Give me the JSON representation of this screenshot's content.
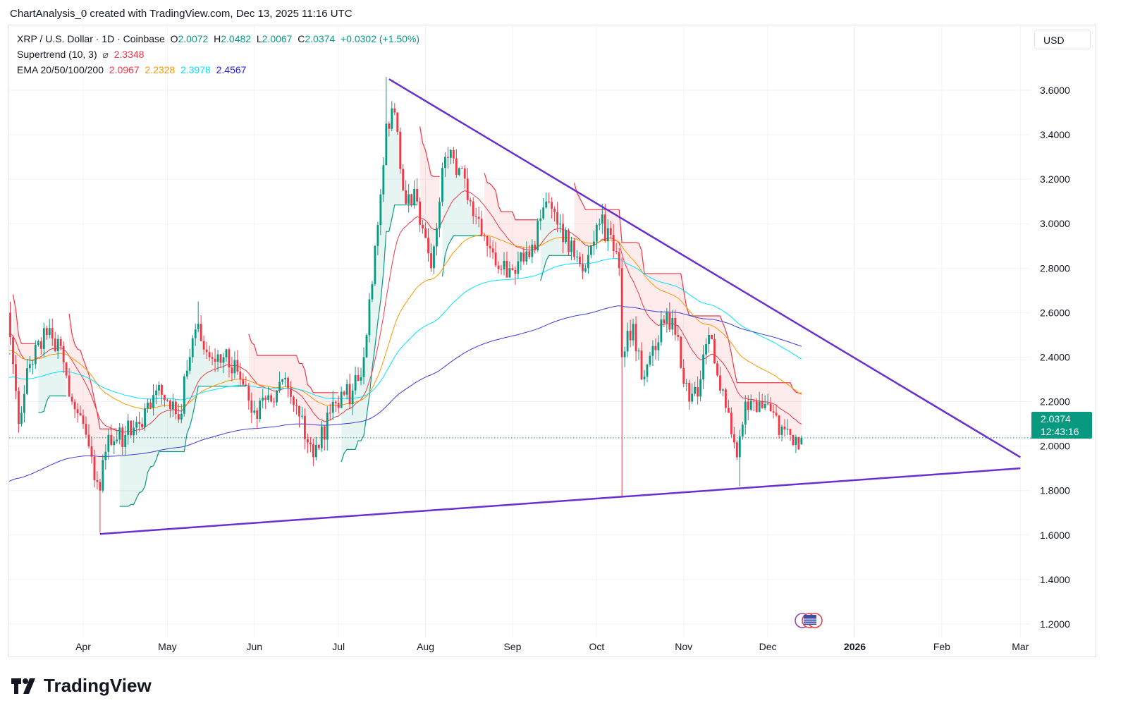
{
  "credit": "ChartAnalysis_0 created with TradingView.com, Dec 13, 2025 11:16 UTC",
  "legend": {
    "symbol": "XRP / U.S. Dollar · 1D · Coinbase",
    "o_label": "O",
    "o": "2.0072",
    "h_label": "H",
    "h": "2.0482",
    "l_label": "L",
    "l": "2.0067",
    "c_label": "C",
    "c": "2.0374",
    "change": "+0.0302 (+1.50%)",
    "supertrend_label": "Supertrend (10, 3)",
    "supertrend_icon": "hidden-eye-icon",
    "supertrend_value": "2.3348",
    "ema_label": "EMA 20/50/100/200",
    "ema_values": [
      "2.0967",
      "2.2328",
      "2.3978",
      "2.4567"
    ]
  },
  "currency": "USD",
  "last_price": {
    "price": "2.0374",
    "countdown": "12:43:16"
  },
  "logo_text": "TradingView",
  "colors": {
    "up": "#089981",
    "down": "#f23645",
    "trendline": "#6a2fd1",
    "grid": "#f0f3fa"
  },
  "chart_data": {
    "type": "candlestick",
    "title": "XRP / U.S. Dollar · 1D · Coinbase",
    "ylim": [
      1.1,
      3.85
    ],
    "y_ticks": [
      "3.6000",
      "3.4000",
      "3.2000",
      "3.0000",
      "2.8000",
      "2.6000",
      "2.4000",
      "2.2000",
      "2.0000",
      "1.8000",
      "1.6000",
      "1.4000",
      "1.2000"
    ],
    "x_ticks": [
      {
        "label": "Apr",
        "date": "2025-04-01"
      },
      {
        "label": "May",
        "date": "2025-05-01"
      },
      {
        "label": "Jun",
        "date": "2025-06-01"
      },
      {
        "label": "Jul",
        "date": "2025-07-01"
      },
      {
        "label": "Aug",
        "date": "2025-08-01"
      },
      {
        "label": "Sep",
        "date": "2025-09-01"
      },
      {
        "label": "Oct",
        "date": "2025-10-01"
      },
      {
        "label": "Nov",
        "date": "2025-11-01"
      },
      {
        "label": "Dec",
        "date": "2025-12-01"
      },
      {
        "label": "2026",
        "date": "2026-01-01",
        "bold": true
      },
      {
        "label": "Feb",
        "date": "2026-02-01"
      },
      {
        "label": "Mar",
        "date": "2026-03-01"
      }
    ],
    "price_path": [
      [
        "2025-03-05",
        2.6
      ],
      [
        "2025-03-09",
        2.1
      ],
      [
        "2025-03-12",
        2.35
      ],
      [
        "2025-03-19",
        2.5
      ],
      [
        "2025-03-24",
        2.45
      ],
      [
        "2025-03-28",
        2.2
      ],
      [
        "2025-04-01",
        2.1
      ],
      [
        "2025-04-07",
        1.8
      ],
      [
        "2025-04-10",
        2.05
      ],
      [
        "2025-04-16",
        2.05
      ],
      [
        "2025-04-21",
        2.1
      ],
      [
        "2025-04-27",
        2.25
      ],
      [
        "2025-05-03",
        2.2
      ],
      [
        "2025-05-05",
        2.12
      ],
      [
        "2025-05-09",
        2.4
      ],
      [
        "2025-05-12",
        2.55
      ],
      [
        "2025-05-16",
        2.4
      ],
      [
        "2025-05-21",
        2.4
      ],
      [
        "2025-05-27",
        2.3
      ],
      [
        "2025-05-31",
        2.15
      ],
      [
        "2025-06-07",
        2.2
      ],
      [
        "2025-06-11",
        2.3
      ],
      [
        "2025-06-16",
        2.18
      ],
      [
        "2025-06-22",
        1.95
      ],
      [
        "2025-06-28",
        2.15
      ],
      [
        "2025-07-06",
        2.25
      ],
      [
        "2025-07-10",
        2.4
      ],
      [
        "2025-07-14",
        2.9
      ],
      [
        "2025-07-18",
        3.45
      ],
      [
        "2025-07-21",
        3.5
      ],
      [
        "2025-07-24",
        3.15
      ],
      [
        "2025-07-29",
        3.1
      ],
      [
        "2025-08-03",
        2.8
      ],
      [
        "2025-08-08",
        3.3
      ],
      [
        "2025-08-13",
        3.25
      ],
      [
        "2025-08-17",
        3.1
      ],
      [
        "2025-08-23",
        2.9
      ],
      [
        "2025-08-31",
        2.8
      ],
      [
        "2025-09-07",
        2.85
      ],
      [
        "2025-09-13",
        3.1
      ],
      [
        "2025-09-18",
        3.0
      ],
      [
        "2025-09-23",
        2.85
      ],
      [
        "2025-09-27",
        2.8
      ],
      [
        "2025-10-02",
        3.0
      ],
      [
        "2025-10-06",
        2.95
      ],
      [
        "2025-10-09",
        2.8
      ],
      [
        "2025-10-10",
        2.4
      ],
      [
        "2025-10-14",
        2.55
      ],
      [
        "2025-10-17",
        2.3
      ],
      [
        "2025-10-21",
        2.45
      ],
      [
        "2025-10-26",
        2.6
      ],
      [
        "2025-10-29",
        2.5
      ],
      [
        "2025-11-03",
        2.2
      ],
      [
        "2025-11-07",
        2.3
      ],
      [
        "2025-11-10",
        2.5
      ],
      [
        "2025-11-14",
        2.25
      ],
      [
        "2025-11-17",
        2.15
      ],
      [
        "2025-11-20",
        1.95
      ],
      [
        "2025-11-23",
        2.2
      ],
      [
        "2025-11-28",
        2.2
      ],
      [
        "2025-12-03",
        2.15
      ],
      [
        "2025-12-05",
        2.05
      ],
      [
        "2025-12-09",
        2.05
      ],
      [
        "2025-12-13",
        2.0374
      ]
    ],
    "wick_extremes": [
      {
        "date": "2025-04-07",
        "low": 1.61
      },
      {
        "date": "2025-05-12",
        "high": 2.65
      },
      {
        "date": "2025-06-22",
        "low": 1.91
      },
      {
        "date": "2025-07-18",
        "high": 3.66
      },
      {
        "date": "2025-10-10",
        "low": 1.77
      },
      {
        "date": "2025-11-21",
        "low": 1.82
      }
    ],
    "last_candle": {
      "open": 2.0072,
      "high": 2.0482,
      "low": 2.0067,
      "close": 2.0374
    },
    "ema": [
      {
        "period": 20,
        "color": "#f23645",
        "seed": 2.5
      },
      {
        "period": 50,
        "color": "#ff9800",
        "seed": 2.42
      },
      {
        "period": 100,
        "color": "#00e5ff",
        "seed": 2.3
      },
      {
        "period": 200,
        "color": "#3b3bd9",
        "seed": 1.83
      }
    ],
    "supertrend": {
      "atr_period": 10,
      "multiplier": 3
    },
    "trendlines": [
      {
        "name": "descending-resistance",
        "from": [
          "2025-07-19",
          3.65
        ],
        "to": [
          "2026-03-01",
          1.95
        ]
      },
      {
        "name": "ascending-support",
        "from": [
          "2025-04-07",
          1.605
        ],
        "to": [
          "2026-03-01",
          1.9
        ]
      }
    ]
  }
}
